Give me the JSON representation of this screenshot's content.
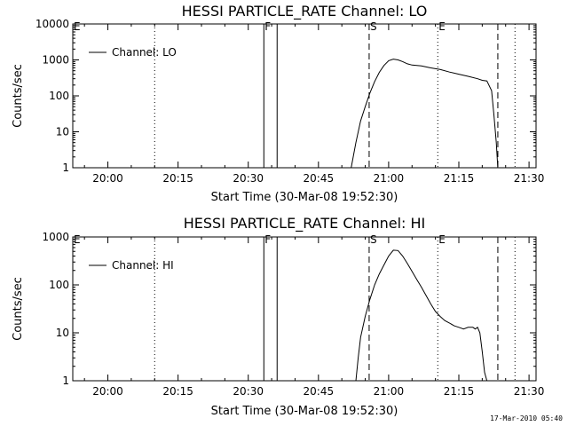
{
  "chart_data": [
    {
      "type": "line",
      "title": "HESSI PARTICLE_RATE Channel: LO",
      "xlabel": "Start Time (30-Mar-08 19:52:30)",
      "ylabel": "Counts/sec",
      "yscale": "log",
      "ylim": [
        1,
        10000
      ],
      "xlim": [
        "19:52:30",
        "21:31:30"
      ],
      "x_ticks": [
        "20:00",
        "20:15",
        "20:30",
        "20:45",
        "21:00",
        "21:15",
        "21:30"
      ],
      "y_ticks": [
        "1",
        "10",
        "100",
        "1000",
        "10000"
      ],
      "legend": {
        "position": "top-left",
        "entries": [
          "Channel: LO"
        ]
      },
      "grid": false,
      "markers": [
        {
          "time": "19:52:30",
          "style": "solid",
          "label": "E"
        },
        {
          "time": "20:10:00",
          "style": "dotted",
          "label": ""
        },
        {
          "time": "20:33:20",
          "style": "solid",
          "label": "F"
        },
        {
          "time": "20:36:10",
          "style": "solid",
          "label": ""
        },
        {
          "time": "20:55:50",
          "style": "dashed",
          "label": "S"
        },
        {
          "time": "21:10:30",
          "style": "dotted",
          "label": "E"
        },
        {
          "time": "21:23:20",
          "style": "dashed",
          "label": ""
        },
        {
          "time": "21:27:00",
          "style": "dotted",
          "label": ""
        }
      ],
      "series": [
        {
          "name": "Channel: LO",
          "x": [
            "20:52:00",
            "20:53:00",
            "20:54:00",
            "20:55:00",
            "20:56:00",
            "20:57:00",
            "20:58:00",
            "20:59:00",
            "21:00:00",
            "21:01:00",
            "21:02:00",
            "21:03:00",
            "21:04:00",
            "21:05:00",
            "21:07:00",
            "21:09:00",
            "21:11:00",
            "21:13:00",
            "21:15:00",
            "21:17:00",
            "21:19:00",
            "21:20:00",
            "21:21:00",
            "21:22:00",
            "21:22:30",
            "21:23:00",
            "21:23:20"
          ],
          "y": [
            1,
            5,
            20,
            50,
            120,
            250,
            450,
            700,
            950,
            1050,
            1000,
            900,
            780,
            720,
            680,
            600,
            540,
            460,
            400,
            350,
            300,
            270,
            260,
            140,
            30,
            5,
            1
          ]
        }
      ]
    },
    {
      "type": "line",
      "title": "HESSI PARTICLE_RATE Channel: HI",
      "xlabel": "Start Time (30-Mar-08 19:52:30)",
      "ylabel": "Counts/sec",
      "yscale": "log",
      "ylim": [
        1,
        1000
      ],
      "xlim": [
        "19:52:30",
        "21:31:30"
      ],
      "x_ticks": [
        "20:00",
        "20:15",
        "20:30",
        "20:45",
        "21:00",
        "21:15",
        "21:30"
      ],
      "y_ticks": [
        "1",
        "10",
        "100",
        "1000"
      ],
      "legend": {
        "position": "top-left",
        "entries": [
          "Channel: HI"
        ]
      },
      "grid": false,
      "markers": [
        {
          "time": "19:52:30",
          "style": "solid",
          "label": "E"
        },
        {
          "time": "20:10:00",
          "style": "dotted",
          "label": ""
        },
        {
          "time": "20:33:20",
          "style": "solid",
          "label": "F"
        },
        {
          "time": "20:36:10",
          "style": "solid",
          "label": ""
        },
        {
          "time": "20:55:50",
          "style": "dashed",
          "label": "S"
        },
        {
          "time": "21:10:30",
          "style": "dotted",
          "label": "E"
        },
        {
          "time": "21:23:20",
          "style": "dashed",
          "label": ""
        },
        {
          "time": "21:27:00",
          "style": "dotted",
          "label": ""
        }
      ],
      "series": [
        {
          "name": "Channel: HI",
          "x": [
            "20:53:00",
            "20:53:30",
            "20:54:00",
            "20:55:00",
            "20:56:00",
            "20:57:00",
            "20:58:00",
            "20:59:00",
            "21:00:00",
            "21:01:00",
            "21:02:00",
            "21:03:00",
            "21:04:00",
            "21:05:00",
            "21:06:00",
            "21:07:00",
            "21:08:00",
            "21:09:00",
            "21:10:00",
            "21:11:00",
            "21:12:00",
            "21:13:00",
            "21:14:00",
            "21:15:00",
            "21:16:00",
            "21:17:00",
            "21:18:00",
            "21:18:30",
            "21:19:00",
            "21:19:30",
            "21:20:00",
            "21:20:30",
            "21:21:00"
          ],
          "y": [
            1,
            3,
            8,
            22,
            50,
            100,
            170,
            260,
            400,
            530,
            520,
            400,
            280,
            190,
            130,
            90,
            60,
            40,
            28,
            22,
            18,
            16,
            14,
            13,
            12,
            13,
            13,
            12,
            13,
            10,
            4,
            1.5,
            1
          ]
        }
      ]
    }
  ],
  "timestamp": "17-Mar-2010 05:40"
}
